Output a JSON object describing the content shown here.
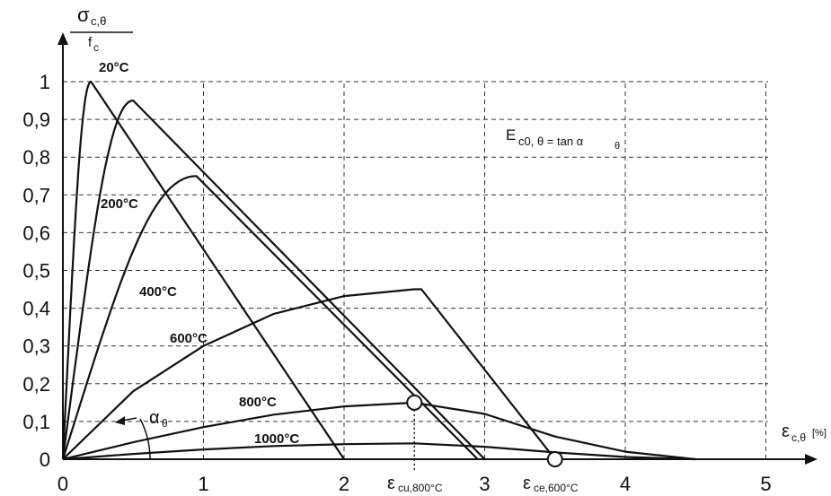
{
  "chart_data": {
    "type": "line",
    "title": "",
    "ylabel": {
      "symbol": "σ",
      "sub": "c,θ",
      "denominator_symbol": "f",
      "denominator_sub": "c"
    },
    "xlabel": {
      "symbol": "ε",
      "sub": "c,θ",
      "unit": "[%]"
    },
    "xlim": [
      0,
      5
    ],
    "ylim": [
      0,
      1
    ],
    "x_ticks": [
      "0",
      "1",
      "2",
      "3",
      "4",
      "5"
    ],
    "y_ticks": [
      "0",
      "0,1",
      "0,2",
      "0,3",
      "0,4",
      "0,5",
      "0,6",
      "0,7",
      "0,8",
      "0,9",
      "1"
    ],
    "grid": true,
    "annotation": {
      "main": "E",
      "sub": "c0, θ = tan α",
      "sub2": "θ"
    },
    "angle_label": {
      "symbol": "α",
      "sub": "θ"
    },
    "markers": [
      {
        "label_main": "ε",
        "label_sub": "cu,800°C",
        "x": 2.5,
        "y": 0.15
      },
      {
        "label_main": "ε",
        "label_sub": "ce,600°C",
        "x": 3.5,
        "y": 0.0
      }
    ],
    "series": [
      {
        "name": "20°C",
        "peak": [
          0.2,
          1.0
        ],
        "end": 2.0
      },
      {
        "name": "200°C",
        "peak": [
          0.5,
          0.95
        ],
        "end": 3.0
      },
      {
        "name": "400°C",
        "peak": [
          0.95,
          0.75
        ],
        "end": 2.95
      },
      {
        "name": "600°C",
        "points": [
          [
            0,
            0
          ],
          [
            0.5,
            0.18
          ],
          [
            1.0,
            0.3
          ],
          [
            1.5,
            0.385
          ],
          [
            2.0,
            0.432
          ],
          [
            2.5,
            0.45
          ],
          [
            2.55,
            0.45
          ],
          [
            3.5,
            0.0
          ]
        ]
      },
      {
        "name": "800°C",
        "points": [
          [
            0,
            0
          ],
          [
            0.5,
            0.045
          ],
          [
            1.0,
            0.085
          ],
          [
            1.5,
            0.118
          ],
          [
            2.0,
            0.14
          ],
          [
            2.5,
            0.15
          ],
          [
            3.0,
            0.12
          ],
          [
            3.5,
            0.06
          ],
          [
            4.0,
            0.02
          ],
          [
            4.5,
            0.0
          ]
        ]
      },
      {
        "name": "1000°C",
        "points": [
          [
            0,
            0
          ],
          [
            0.5,
            0.014
          ],
          [
            1.0,
            0.026
          ],
          [
            1.5,
            0.035
          ],
          [
            2.0,
            0.04
          ],
          [
            2.5,
            0.042
          ],
          [
            3.0,
            0.033
          ],
          [
            3.5,
            0.018
          ],
          [
            4.0,
            0.006
          ],
          [
            4.5,
            0.0
          ]
        ]
      }
    ]
  }
}
